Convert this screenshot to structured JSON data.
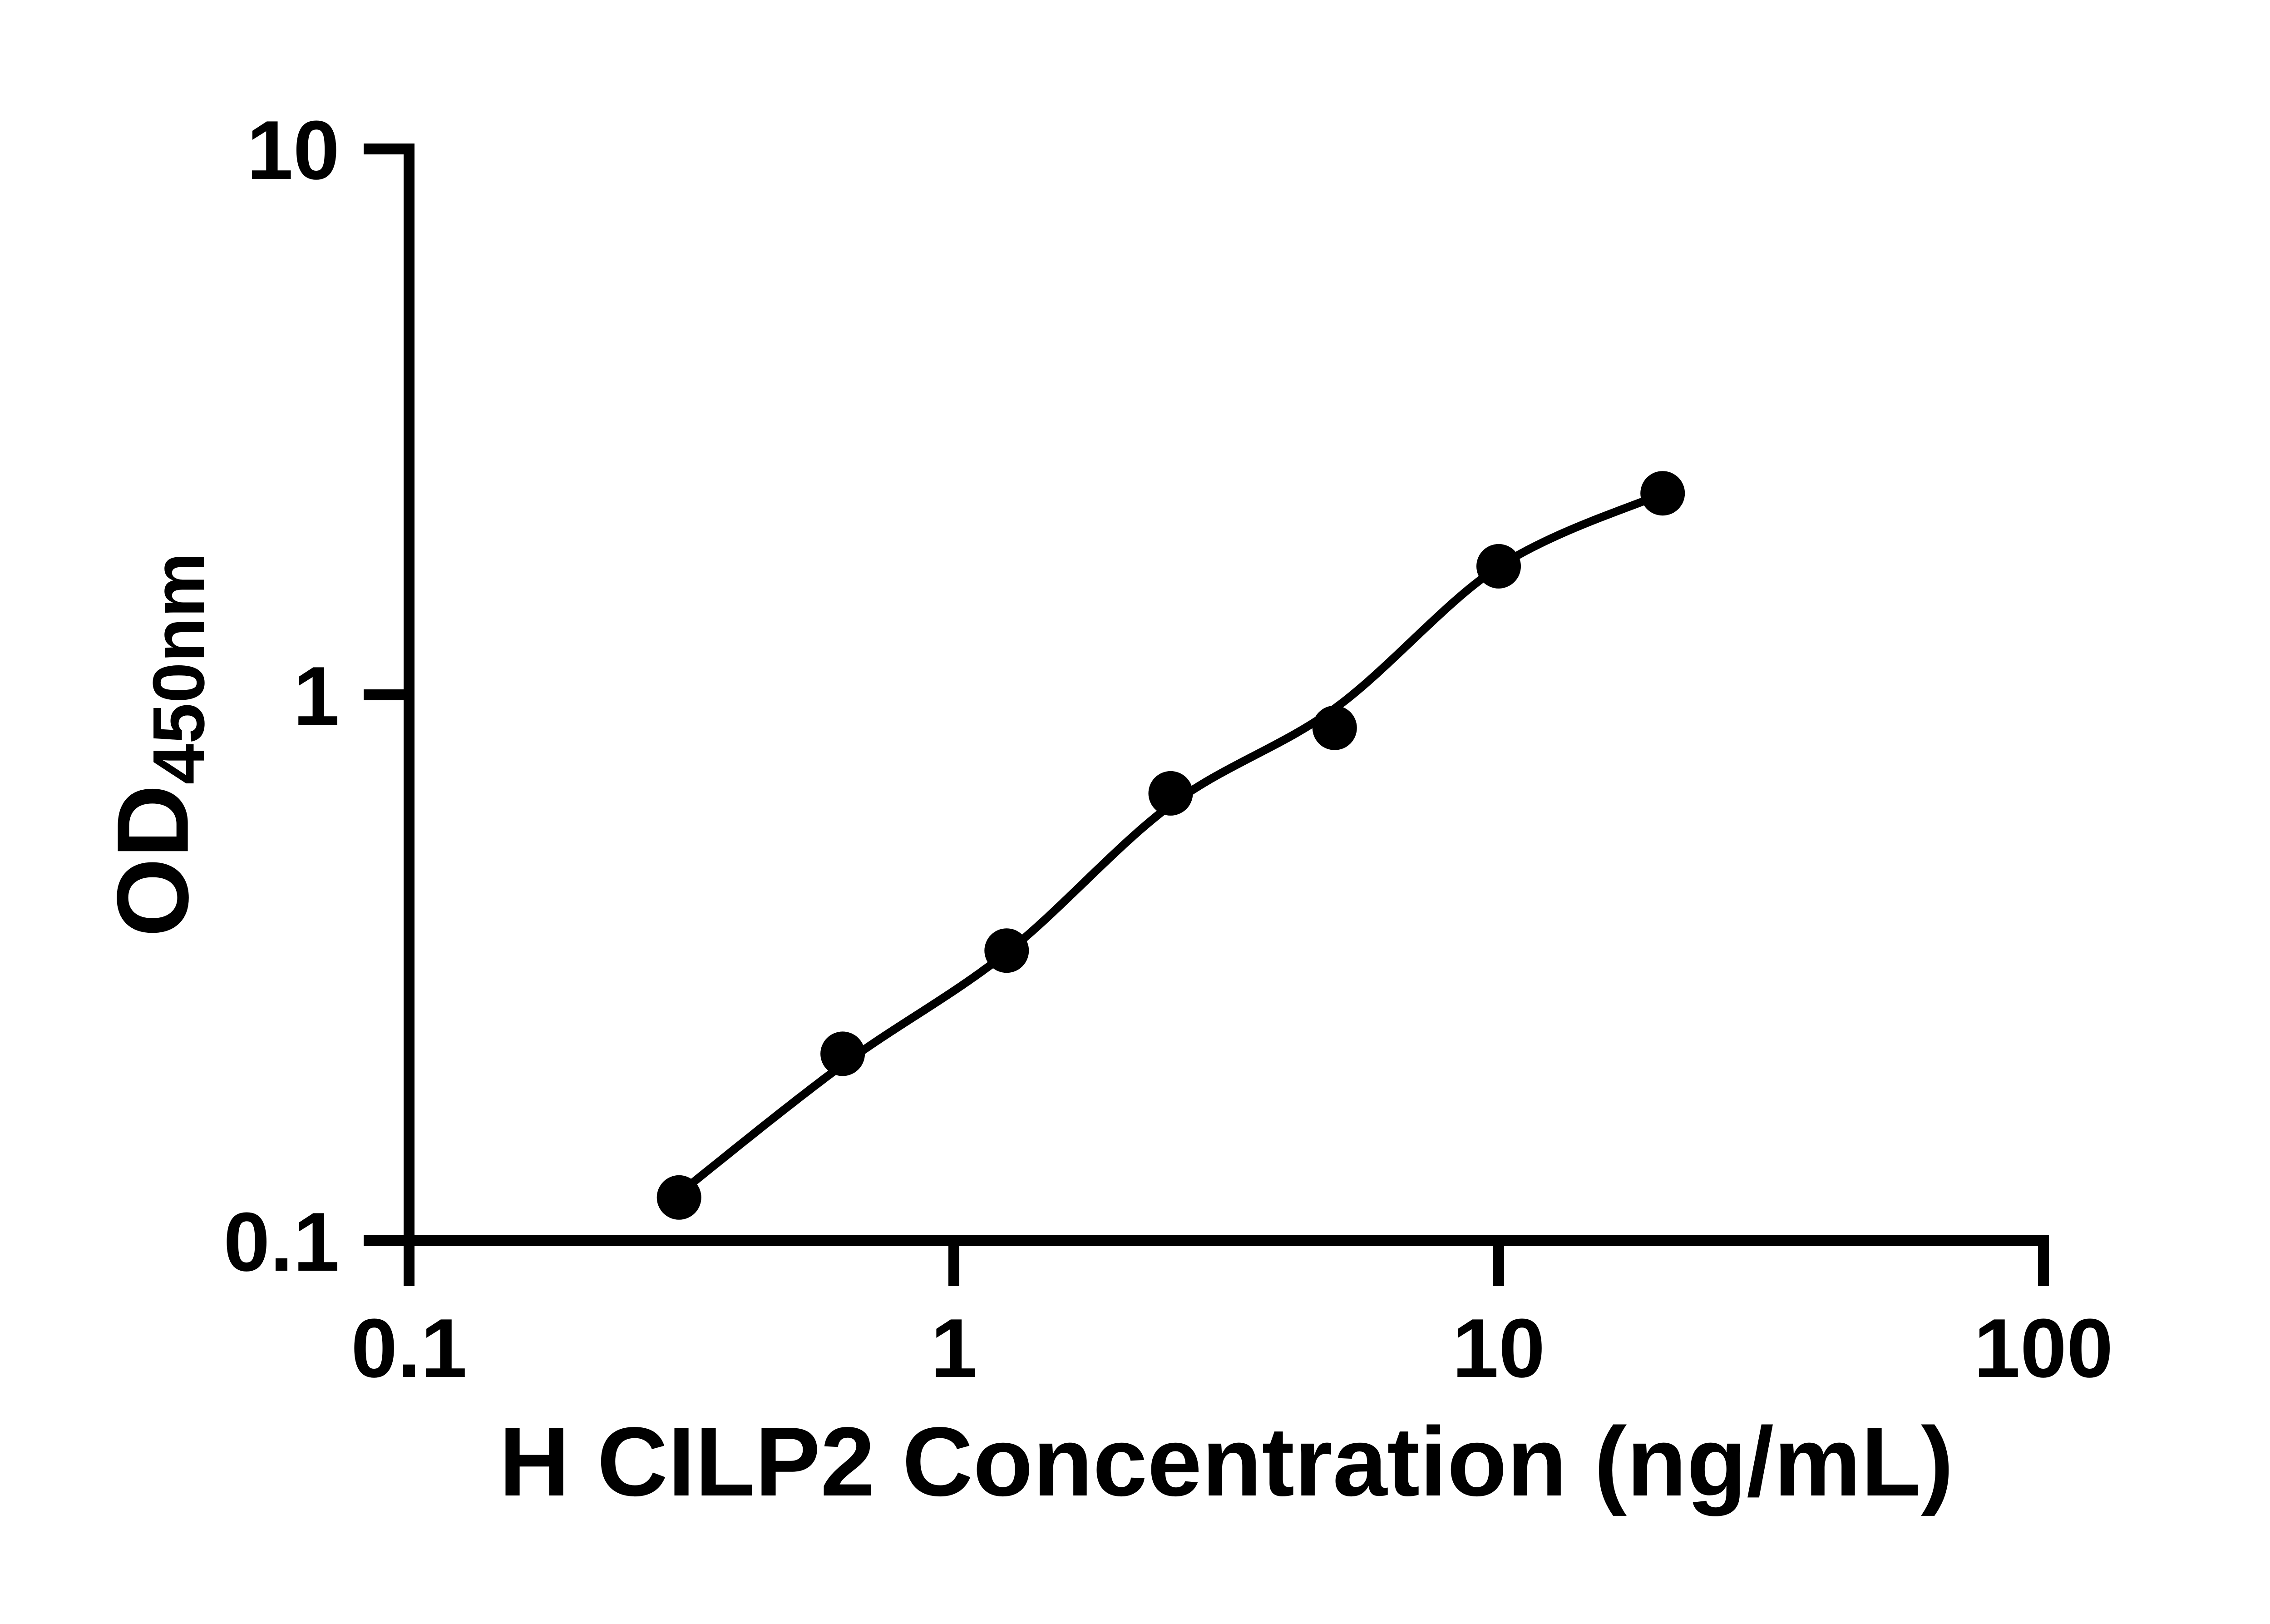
{
  "figure": {
    "background_color": "#ffffff",
    "ink_color": "#000000"
  },
  "chart_data": {
    "type": "scatter",
    "title": "",
    "xlabel": "H CILP2 Concentration (ng/mL)",
    "ylabel_main": "OD",
    "ylabel_subscript": "450nm",
    "x_scale": "log10",
    "y_scale": "log10",
    "xlim": [
      0.1,
      100
    ],
    "ylim": [
      0.1,
      10
    ],
    "x_tick_values": [
      0.1,
      1,
      10,
      100
    ],
    "x_tick_labels": [
      "0.1",
      "1",
      "10",
      "100"
    ],
    "y_tick_values": [
      0.1,
      1,
      10
    ],
    "y_tick_labels": [
      "0.1",
      "1",
      "10"
    ],
    "grid": false,
    "legend": "none",
    "marker": {
      "shape": "filled-circle",
      "color": "#000000"
    },
    "series": [
      {
        "name": "standard-points",
        "kind": "scatter",
        "points": [
          {
            "x": 0.313,
            "od": 0.12
          },
          {
            "x": 0.625,
            "od": 0.22
          },
          {
            "x": 1.25,
            "od": 0.34
          },
          {
            "x": 2.5,
            "od": 0.66
          },
          {
            "x": 5,
            "od": 0.87
          },
          {
            "x": 10,
            "od": 1.72
          },
          {
            "x": 20,
            "od": 2.34
          }
        ]
      },
      {
        "name": "fit-curve",
        "kind": "line",
        "points": [
          {
            "x": 0.313,
            "od": 0.122
          },
          {
            "x": 0.625,
            "od": 0.21
          },
          {
            "x": 1.25,
            "od": 0.337
          },
          {
            "x": 2.5,
            "od": 0.628
          },
          {
            "x": 5,
            "od": 0.944
          },
          {
            "x": 10,
            "od": 1.716
          },
          {
            "x": 20,
            "od": 2.337
          }
        ]
      }
    ]
  }
}
